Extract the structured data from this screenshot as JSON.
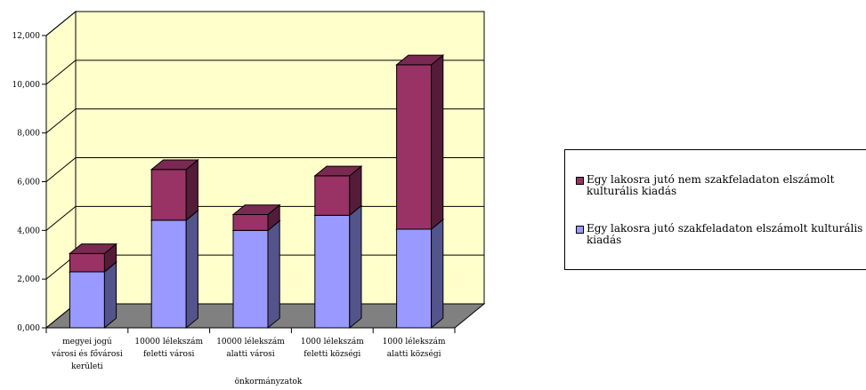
{
  "chart_data": {
    "type": "bar",
    "stacked": true,
    "three_d": true,
    "categories": [
      [
        "megyei jogú",
        "városi és fővárosi",
        "kerületi"
      ],
      [
        "10000 lélekszám",
        "feletti városi"
      ],
      [
        "10000 lélekszám",
        "alatti városi"
      ],
      [
        "1000 lélekszám",
        "feletti községi"
      ],
      [
        "1000 lélekszám",
        "alatti községi"
      ]
    ],
    "series": [
      {
        "name": "Egy lakosra jutó szakfeladaton elszámolt kulturális kiadás",
        "color": "#9999ff",
        "values": [
          2300,
          4420,
          4000,
          4620,
          4050
        ]
      },
      {
        "name": "Egy lakosra jutó nem szakfeladaton elszámolt kulturális kiadás",
        "color": "#993366",
        "values": [
          750,
          2080,
          650,
          1620,
          6750
        ]
      }
    ],
    "xlabel": "önkormányzatok",
    "ylabel": "",
    "ylim": [
      0,
      12000
    ],
    "yticks": [
      0,
      2000,
      4000,
      6000,
      8000,
      10000,
      12000
    ],
    "ytick_labels": [
      "0,000",
      "2,000",
      "4,000",
      "6,000",
      "8,000",
      "10,000",
      "12,000"
    ],
    "grid": true,
    "legend_position": "right",
    "legend_order": [
      1,
      0
    ],
    "colors": {
      "wall": "#ffffcc",
      "floor": "#808080"
    }
  }
}
